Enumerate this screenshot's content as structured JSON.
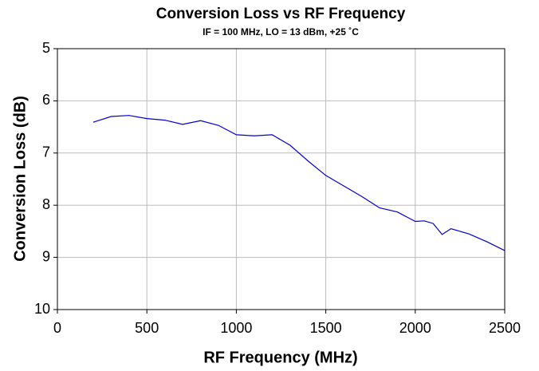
{
  "chart_data": {
    "type": "line",
    "title": "Conversion Loss vs RF Frequency",
    "subtitle": "IF = 100 MHz, LO = 13 dBm, +25 ˚C",
    "x_label": "RF Frequency (MHz)",
    "y_label": "Conversion Loss (dB)",
    "x": [
      200,
      300,
      400,
      500,
      600,
      700,
      800,
      900,
      1000,
      1100,
      1200,
      1300,
      1400,
      1500,
      1600,
      1700,
      1800,
      1900,
      2000,
      2050,
      2100,
      2150,
      2200,
      2300,
      2400,
      2500
    ],
    "series": [
      {
        "color": "#0000cc",
        "values": [
          6.41,
          6.3,
          6.28,
          6.34,
          6.37,
          6.45,
          6.38,
          6.47,
          6.65,
          6.67,
          6.65,
          6.85,
          7.15,
          7.43,
          7.63,
          7.83,
          8.05,
          8.13,
          8.31,
          8.3,
          8.35,
          8.56,
          8.45,
          8.55,
          8.7,
          8.87
        ]
      }
    ],
    "xlim": [
      0,
      2500
    ],
    "xticks": [
      0,
      500,
      1000,
      1500,
      2000,
      2500
    ],
    "ylim": [
      5,
      10
    ],
    "yticks": [
      5,
      6,
      7,
      8,
      9,
      10
    ],
    "y_inverted": true,
    "grid": true
  }
}
